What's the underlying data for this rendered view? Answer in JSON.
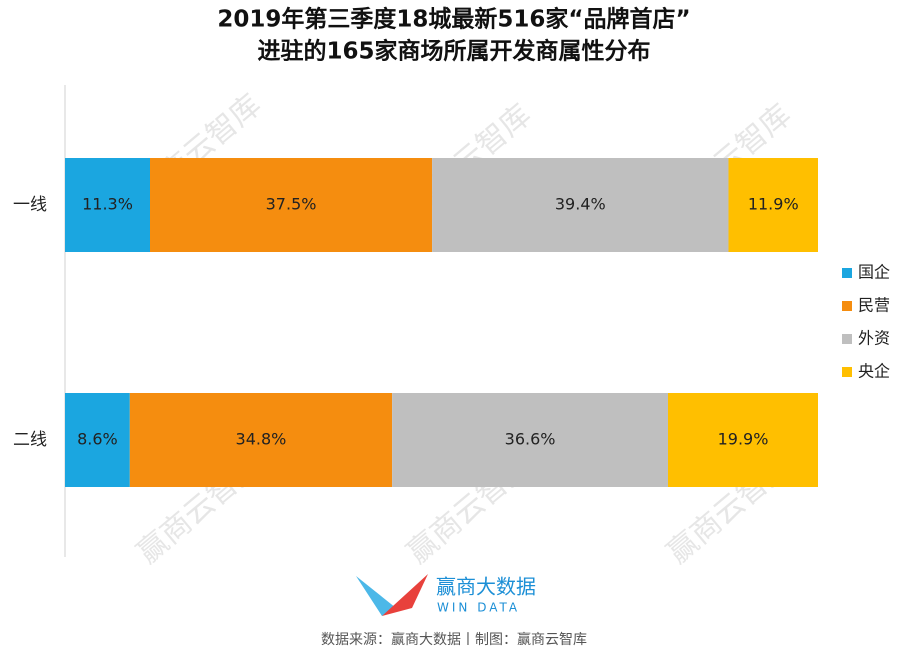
{
  "chart_data": {
    "type": "bar",
    "title": "2019年第三季度18城最新516家“品牌首店”",
    "subtitle": "进驻的165家商场所属开发商属性分布",
    "categories": [
      "一线",
      "二线"
    ],
    "series": [
      {
        "name": "国企",
        "color": "#1ba6e0",
        "values": [
          11.3,
          8.6
        ],
        "value_labels": [
          "11.3%",
          "8.6%"
        ]
      },
      {
        "name": "民营",
        "color": "#f58d0f",
        "values": [
          37.5,
          34.8
        ],
        "value_labels": [
          "37.5%",
          "34.8%"
        ]
      },
      {
        "name": "外资",
        "color": "#bfbfbf",
        "values": [
          39.4,
          36.6
        ],
        "value_labels": [
          "39.4%",
          "36.6%"
        ]
      },
      {
        "name": "央企",
        "color": "#ffbf00",
        "values": [
          11.9,
          19.9
        ],
        "value_labels": [
          "11.9%",
          "19.9%"
        ]
      }
    ],
    "legend": "right"
  },
  "watermark": "赢商云智库",
  "logo": {
    "name": "赢商大数据",
    "subtitle": "WIN DATA"
  },
  "source": "数据来源：赢商大数据丨制图：赢商云智库"
}
